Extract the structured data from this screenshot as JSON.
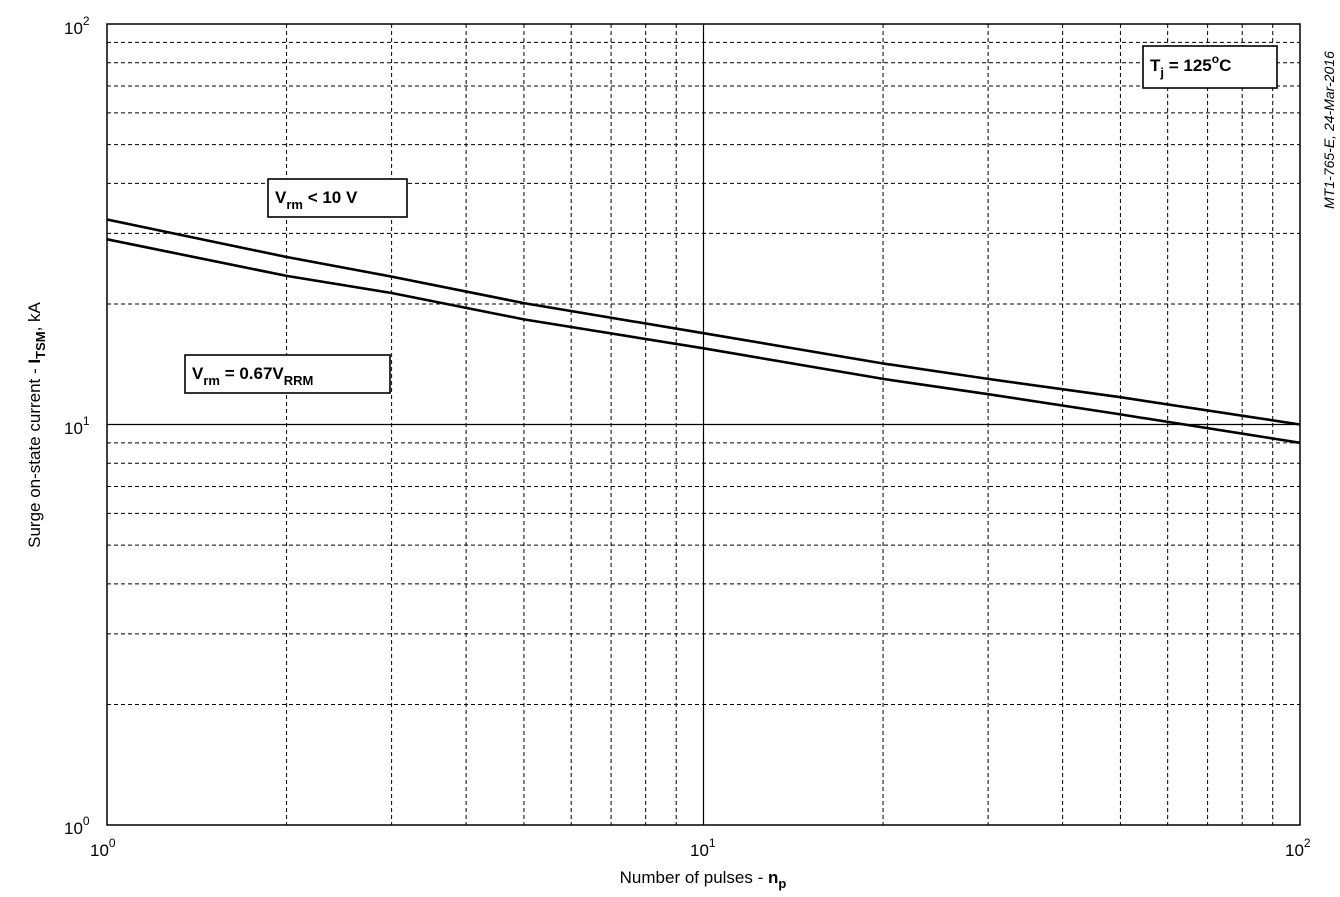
{
  "chart_data": {
    "type": "line",
    "xscale": "log",
    "yscale": "log",
    "xlim": [
      1,
      100
    ],
    "ylim": [
      1,
      100
    ],
    "grid": true,
    "xticks": [
      {
        "base": "10",
        "exp": "0",
        "value": 1
      },
      {
        "base": "10",
        "exp": "1",
        "value": 10
      },
      {
        "base": "10",
        "exp": "2",
        "value": 100
      }
    ],
    "yticks": [
      {
        "base": "10",
        "exp": "0",
        "value": 1
      },
      {
        "base": "10",
        "exp": "1",
        "value": 10
      },
      {
        "base": "10",
        "exp": "2",
        "value": 100
      }
    ],
    "xlabel": {
      "text": "Number of pulses - ",
      "sym": "n",
      "sub": "p"
    },
    "ylabel": {
      "text": "Surge on-state current - ",
      "sym": "I",
      "sub": "TSM",
      "unit": ", kA"
    },
    "series": [
      {
        "x": [
          1,
          2,
          3,
          5,
          10,
          20,
          30,
          50,
          100
        ],
        "values": [
          32.5,
          26.2,
          23.4,
          20.1,
          16.9,
          14.2,
          13.0,
          11.7,
          10.0
        ]
      },
      {
        "x": [
          1,
          2,
          3,
          5,
          10,
          20,
          30,
          50,
          100
        ],
        "values": [
          29.0,
          23.5,
          21.3,
          18.3,
          15.5,
          13.0,
          11.9,
          10.6,
          9.0
        ]
      }
    ],
    "annotations": [
      {
        "text": "V",
        "sub": "rm",
        "rest": " < 10 V"
      },
      {
        "text": "V",
        "sub": "rm",
        "rest": " = 0.67V",
        "sub2": "RRM"
      },
      {
        "text": "T",
        "sub": "j",
        "rest": " = 125",
        "sup": "o",
        "rest2": "C"
      }
    ],
    "side_note": "MT1-765-E, 24-Mar-2016"
  }
}
